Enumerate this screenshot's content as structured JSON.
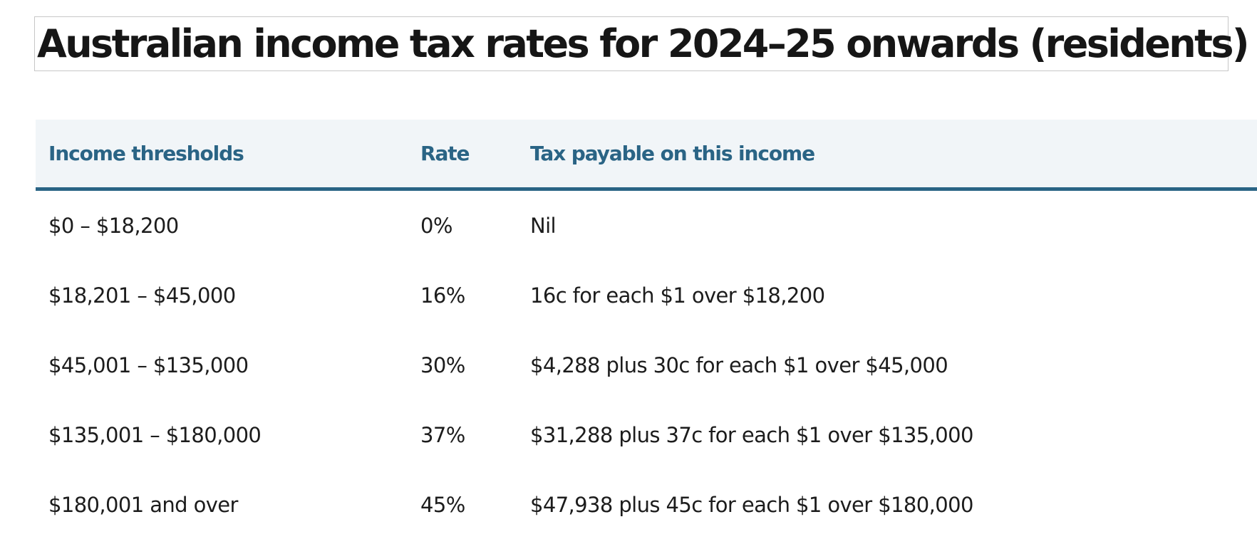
{
  "title": "Australian income tax rates for 2024–25 onwards (residents)",
  "table": {
    "headers": [
      "Income thresholds",
      "Rate",
      "Tax payable on this income"
    ],
    "rows": [
      [
        "$0 – $18,200",
        "0%",
        "Nil"
      ],
      [
        "$18,201 – $45,000",
        "16%",
        "16c for each $1 over $18,200"
      ],
      [
        "$45,001 – $135,000",
        "30%",
        "$4,288 plus 30c for each $1 over $45,000"
      ],
      [
        "$135,001 – $180,000",
        "37%",
        "$31,288 plus 37c for each $1 over $135,000"
      ],
      [
        "$180,001 and over",
        "45%",
        "$47,938 plus 45c for each $1 over $180,000"
      ]
    ]
  },
  "colors": {
    "header_text": "#2a6485",
    "header_background": "#f1f5f8",
    "header_rule": "#2a6485",
    "body_text": "#1c1c1c"
  }
}
